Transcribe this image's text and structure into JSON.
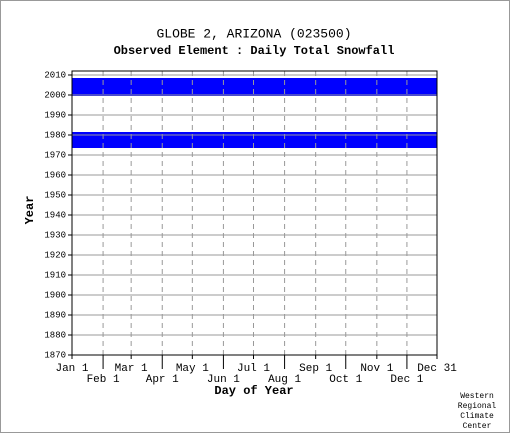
{
  "chart_data": {
    "type": "range",
    "title": "GLOBE 2, ARIZONA   (023500)",
    "subtitle": "Observed Element : Daily Total Snowfall",
    "x_label": "Day of Year",
    "y_label": "Year",
    "credit": [
      "Western",
      "Regional",
      "Climate",
      "Center"
    ],
    "color": "#0000ff",
    "y_ranges": [
      [
        1974,
        1981
      ],
      [
        2000,
        2008
      ]
    ],
    "xlim": [
      1,
      365
    ],
    "ylim": [
      1870,
      2012
    ],
    "xticks": [
      {
        "value": 1,
        "label": "Jan 1"
      },
      {
        "value": 32,
        "label": "Feb 1"
      },
      {
        "value": 60,
        "label": "Mar 1"
      },
      {
        "value": 91,
        "label": "Apr 1"
      },
      {
        "value": 121,
        "label": "May 1"
      },
      {
        "value": 152,
        "label": "Jun 1"
      },
      {
        "value": 182,
        "label": "Jul 1"
      },
      {
        "value": 213,
        "label": "Aug 1"
      },
      {
        "value": 244,
        "label": "Sep 1"
      },
      {
        "value": 274,
        "label": "Oct 1"
      },
      {
        "value": 305,
        "label": "Nov 1"
      },
      {
        "value": 335,
        "label": "Dec 1"
      },
      {
        "value": 365,
        "label": "Dec 31"
      }
    ],
    "yticks": [
      1870,
      1880,
      1890,
      1900,
      1910,
      1920,
      1930,
      1940,
      1950,
      1960,
      1970,
      1980,
      1990,
      2000,
      2010
    ],
    "grid": true
  }
}
